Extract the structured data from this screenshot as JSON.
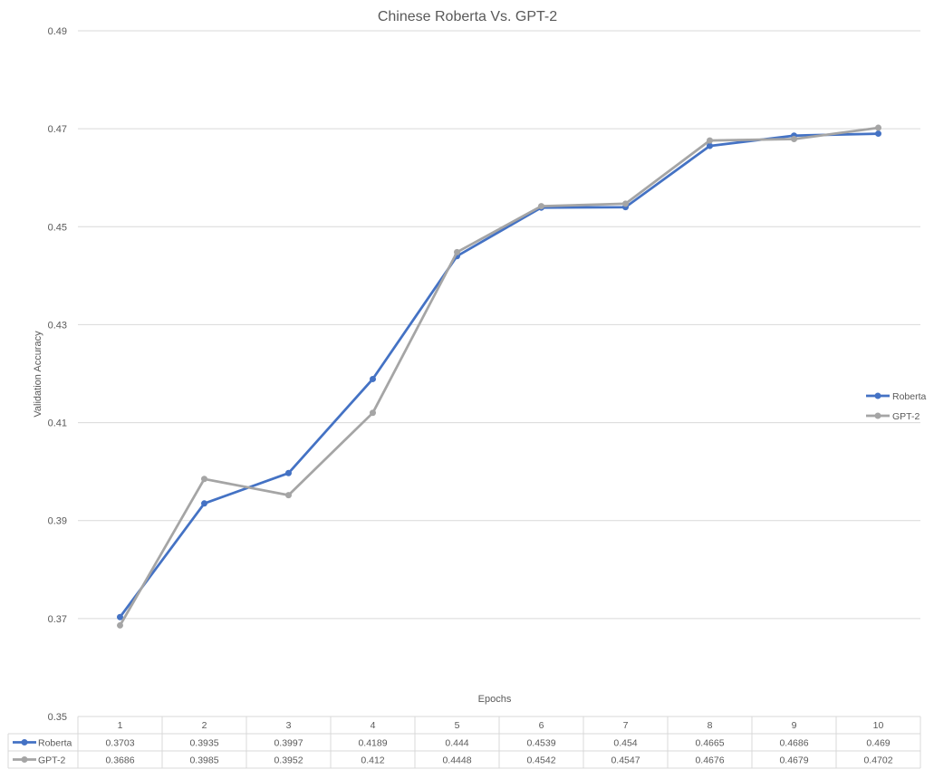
{
  "chart_data": {
    "type": "line",
    "title": "Chinese Roberta Vs. GPT-2",
    "xlabel": "Epochs",
    "ylabel": "Validation Accuracy",
    "categories": [
      "1",
      "2",
      "3",
      "4",
      "5",
      "6",
      "7",
      "8",
      "9",
      "10"
    ],
    "ylim": [
      0.35,
      0.49
    ],
    "yticks": [
      "0.35",
      "0.37",
      "0.39",
      "0.41",
      "0.43",
      "0.45",
      "0.47",
      "0.49"
    ],
    "grid": true,
    "legend_position": "right",
    "data_table": true,
    "series": [
      {
        "name": "Roberta",
        "color": "#4472C4",
        "values": [
          0.3703,
          0.3935,
          0.3997,
          0.4189,
          0.444,
          0.4539,
          0.454,
          0.4665,
          0.4686,
          0.469
        ],
        "labels": [
          "0.3703",
          "0.3935",
          "0.3997",
          "0.4189",
          "0.444",
          "0.4539",
          "0.454",
          "0.4665",
          "0.4686",
          "0.469"
        ]
      },
      {
        "name": "GPT-2",
        "color": "#A5A5A5",
        "values": [
          0.3686,
          0.3985,
          0.3952,
          0.412,
          0.4448,
          0.4542,
          0.4547,
          0.4676,
          0.4679,
          0.4702
        ],
        "labels": [
          "0.3686",
          "0.3985",
          "0.3952",
          "0.412",
          "0.4448",
          "0.4542",
          "0.4547",
          "0.4676",
          "0.4679",
          "0.4702"
        ]
      }
    ]
  }
}
